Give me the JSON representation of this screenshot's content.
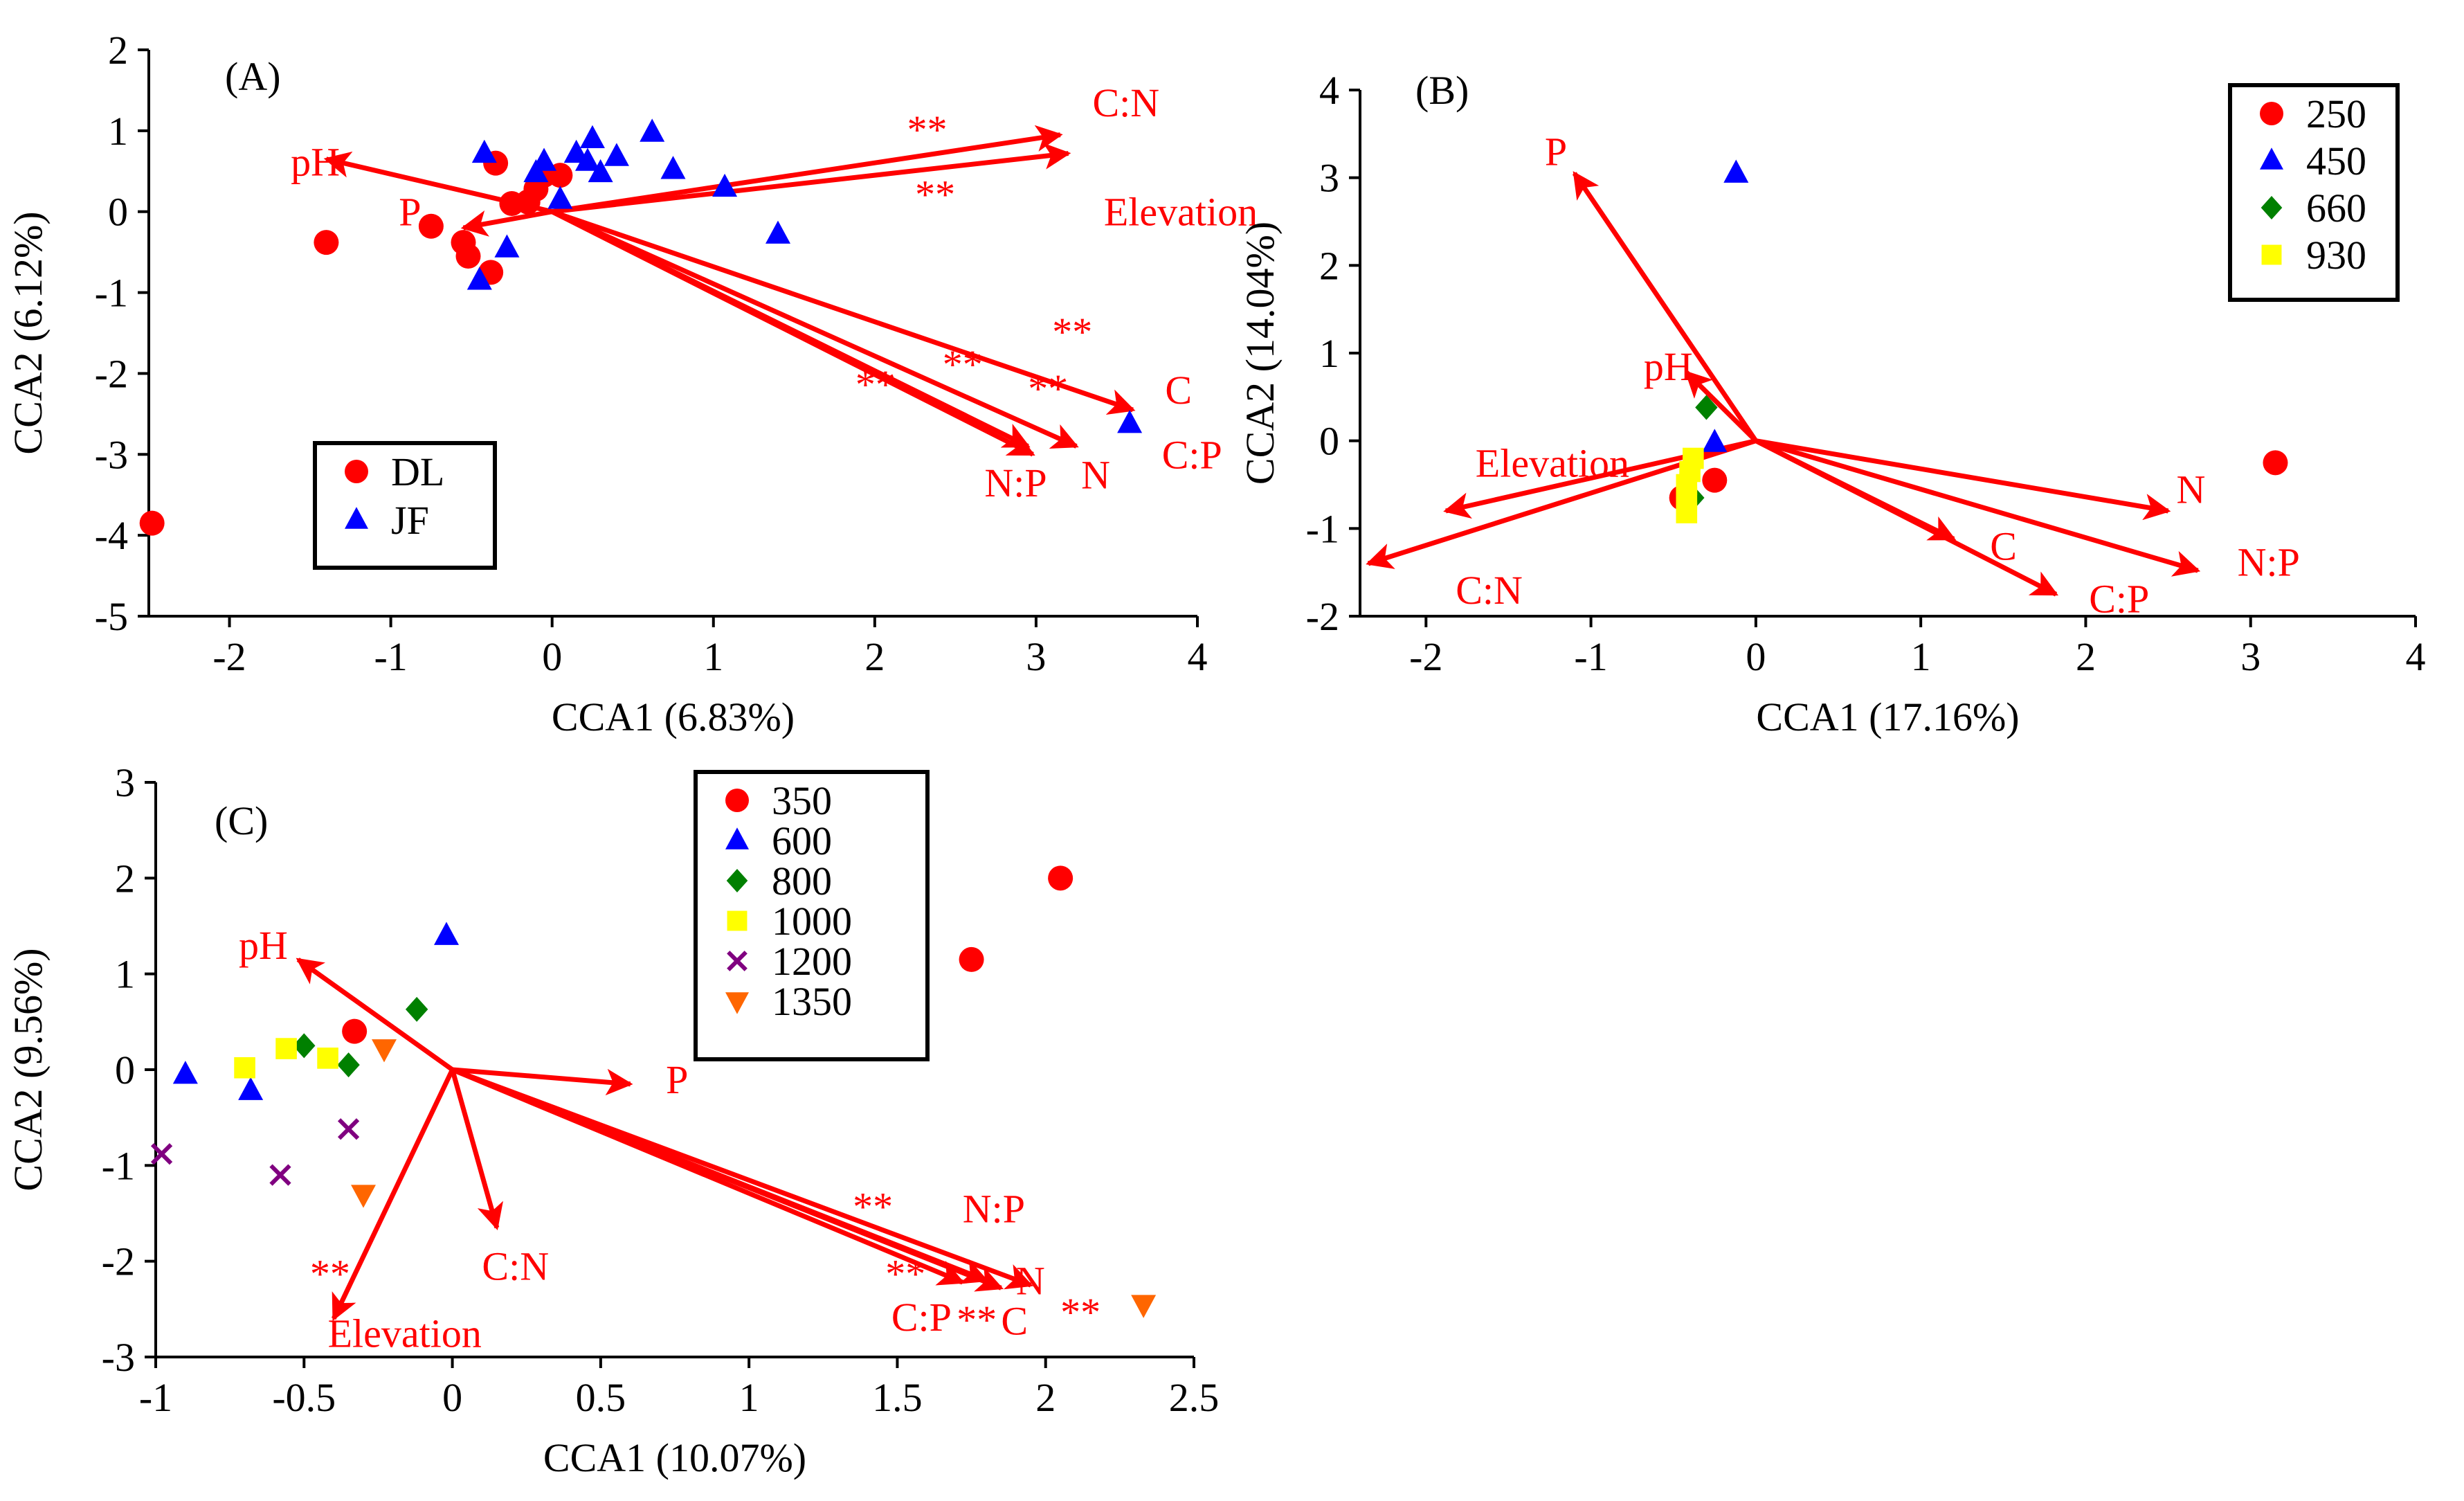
{
  "colors": {
    "arrow": "#ff0000",
    "axis": "#000000",
    "red": "#ff0000",
    "blue": "#0000ff",
    "green": "#008000",
    "yellow": "#ffff00",
    "purple": "#800080",
    "orange": "#ff6600"
  },
  "chart_data": [
    {
      "id": "A",
      "type": "scatter",
      "panel_label": "(A)",
      "xlabel": "CCA1 (6.83%)",
      "ylabel": "CCA2 (6.12%)",
      "xlim": [
        -2.5,
        4
      ],
      "ylim": [
        -5,
        2
      ],
      "xticks": [
        -2,
        -1,
        0,
        1,
        2,
        3,
        4
      ],
      "yticks": [
        2,
        1,
        0,
        -1,
        -2,
        -3,
        -4,
        -5
      ],
      "legend": {
        "position": "bottom-left",
        "entries": [
          {
            "label": "DL",
            "marker": "circle",
            "color": "#ff0000"
          },
          {
            "label": "JF",
            "marker": "triangle",
            "color": "#0000ff"
          }
        ]
      },
      "series": [
        {
          "name": "DL",
          "marker": "circle",
          "color": "#ff0000",
          "points": [
            [
              -2.48,
              -3.85
            ],
            [
              -1.4,
              -0.38
            ],
            [
              -0.75,
              -0.18
            ],
            [
              -0.55,
              -0.38
            ],
            [
              -0.52,
              -0.55
            ],
            [
              -0.38,
              -0.75
            ],
            [
              -0.35,
              0.6
            ],
            [
              -0.25,
              0.1
            ],
            [
              -0.1,
              0.28
            ],
            [
              -0.05,
              0.45
            ],
            [
              0.05,
              0.45
            ],
            [
              -0.15,
              0.12
            ]
          ]
        },
        {
          "name": "JF",
          "marker": "triangle",
          "color": "#0000ff",
          "points": [
            [
              -0.42,
              0.72
            ],
            [
              -0.45,
              -0.85
            ],
            [
              -0.28,
              -0.45
            ],
            [
              -0.1,
              0.48
            ],
            [
              -0.05,
              0.62
            ],
            [
              0.05,
              0.15
            ],
            [
              0.15,
              0.72
            ],
            [
              0.22,
              0.62
            ],
            [
              0.25,
              0.9
            ],
            [
              0.3,
              0.48
            ],
            [
              0.4,
              0.68
            ],
            [
              0.62,
              0.98
            ],
            [
              0.75,
              0.52
            ],
            [
              1.07,
              0.3
            ],
            [
              1.4,
              -0.28
            ],
            [
              3.58,
              -2.62
            ]
          ]
        }
      ],
      "vectors": [
        {
          "label": "C:N",
          "x": 3.15,
          "y": 0.95,
          "lx": 3.35,
          "ly": 1.35,
          "sig": "**",
          "sx": 2.2,
          "sy": 1.05
        },
        {
          "label": "Elevation",
          "x": 3.2,
          "y": 0.72,
          "lx": 3.42,
          "ly": 0.0,
          "sig": "**",
          "sx": 2.25,
          "sy": 0.25
        },
        {
          "label": "pH",
          "x": -1.4,
          "y": 0.65,
          "lx": -1.62,
          "ly": 0.62,
          "sig": "",
          "sx": 0,
          "sy": 0
        },
        {
          "label": "P",
          "x": -0.55,
          "y": -0.2,
          "lx": -0.95,
          "ly": 0.0,
          "sig": "",
          "sx": 0,
          "sy": 0
        },
        {
          "label": "C",
          "x": 3.6,
          "y": -2.45,
          "lx": 3.8,
          "ly": -2.2,
          "sig": "**",
          "sx": 3.1,
          "sy": -1.45
        },
        {
          "label": "C:P",
          "x": 3.25,
          "y": -2.9,
          "lx": 3.78,
          "ly": -3.0,
          "sig": "**",
          "sx": 2.95,
          "sy": -2.15
        },
        {
          "label": "N",
          "x": 2.95,
          "y": -2.9,
          "lx": 3.28,
          "ly": -3.25,
          "sig": "**",
          "sx": 2.42,
          "sy": -1.85
        },
        {
          "label": "N:P",
          "x": 2.98,
          "y": -3.0,
          "lx": 2.68,
          "ly": -3.35,
          "sig": "**",
          "sx": 1.88,
          "sy": -2.1
        }
      ]
    },
    {
      "id": "B",
      "type": "scatter",
      "panel_label": "(B)",
      "xlabel": "CCA1 (17.16%)",
      "ylabel": "CCA2 (14.04%)",
      "xlim": [
        -2.4,
        4
      ],
      "ylim": [
        -2,
        4
      ],
      "xticks": [
        -2,
        -1,
        0,
        1,
        2,
        3,
        4
      ],
      "yticks": [
        4,
        3,
        2,
        1,
        0,
        -1,
        -2
      ],
      "legend": {
        "position": "top-right",
        "entries": [
          {
            "label": "250",
            "marker": "circle",
            "color": "#ff0000"
          },
          {
            "label": "450",
            "marker": "triangle",
            "color": "#0000ff"
          },
          {
            "label": "660",
            "marker": "diamond",
            "color": "#008000"
          },
          {
            "label": "930",
            "marker": "square",
            "color": "#ffff00"
          }
        ]
      },
      "series": [
        {
          "name": "250",
          "marker": "circle",
          "color": "#ff0000",
          "points": [
            [
              3.15,
              -0.25
            ],
            [
              -0.25,
              -0.45
            ],
            [
              -0.45,
              -0.65
            ]
          ]
        },
        {
          "name": "450",
          "marker": "triangle",
          "color": "#0000ff",
          "points": [
            [
              -0.12,
              3.05
            ],
            [
              -0.25,
              -0.02
            ]
          ]
        },
        {
          "name": "660",
          "marker": "diamond",
          "color": "#008000",
          "points": [
            [
              -0.3,
              0.38
            ],
            [
              -0.38,
              -0.65
            ]
          ]
        },
        {
          "name": "930",
          "marker": "square",
          "color": "#ffff00",
          "points": [
            [
              -0.38,
              -0.2
            ],
            [
              -0.4,
              -0.35
            ],
            [
              -0.42,
              -0.5
            ],
            [
              -0.42,
              -0.65
            ],
            [
              -0.42,
              -0.82
            ]
          ]
        }
      ],
      "vectors": [
        {
          "label": "P",
          "x": -1.1,
          "y": 3.05,
          "lx": -1.28,
          "ly": 3.3,
          "sig": "",
          "sx": 0,
          "sy": 0
        },
        {
          "label": "pH",
          "x": -0.42,
          "y": 0.78,
          "lx": -0.68,
          "ly": 0.85,
          "sig": "",
          "sx": 0,
          "sy": 0
        },
        {
          "label": "Elevation",
          "x": -1.88,
          "y": -0.8,
          "lx": -1.7,
          "ly": -0.25,
          "sig": "",
          "sx": 0,
          "sy": 0
        },
        {
          "label": "C:N",
          "x": -2.35,
          "y": -1.4,
          "lx": -1.82,
          "ly": -1.7,
          "sig": "",
          "sx": 0,
          "sy": 0
        },
        {
          "label": "N",
          "x": 2.5,
          "y": -0.8,
          "lx": 2.55,
          "ly": -0.55,
          "sig": "",
          "sx": 0,
          "sy": 0
        },
        {
          "label": "N:P",
          "x": 2.68,
          "y": -1.48,
          "lx": 2.92,
          "ly": -1.38,
          "sig": "",
          "sx": 0,
          "sy": 0
        },
        {
          "label": "C",
          "x": 1.2,
          "y": -1.12,
          "lx": 1.42,
          "ly": -1.2,
          "sig": "",
          "sx": 0,
          "sy": 0
        },
        {
          "label": "C:P",
          "x": 1.82,
          "y": -1.75,
          "lx": 2.02,
          "ly": -1.8,
          "sig": "",
          "sx": 0,
          "sy": 0
        }
      ]
    },
    {
      "id": "C",
      "type": "scatter",
      "panel_label": "(C)",
      "xlabel": "CCA1 (10.07%)",
      "ylabel": "CCA2 (9.56%)",
      "xlim": [
        -1,
        2.5
      ],
      "ylim": [
        -3,
        3
      ],
      "xticks": [
        -1,
        -0.5,
        0,
        0.5,
        1,
        1.5,
        2,
        2.5
      ],
      "yticks": [
        3,
        2,
        1,
        0,
        -1,
        -2,
        -3
      ],
      "legend": {
        "position": "top-center",
        "entries": [
          {
            "label": "350",
            "marker": "circle",
            "color": "#ff0000"
          },
          {
            "label": "600",
            "marker": "triangle",
            "color": "#0000ff"
          },
          {
            "label": "800",
            "marker": "diamond",
            "color": "#008000"
          },
          {
            "label": "1000",
            "marker": "square",
            "color": "#ffff00"
          },
          {
            "label": "1200",
            "marker": "cross",
            "color": "#800080"
          },
          {
            "label": "1350",
            "marker": "triangle-down",
            "color": "#ff6600"
          }
        ]
      },
      "series": [
        {
          "name": "350",
          "marker": "circle",
          "color": "#ff0000",
          "points": [
            [
              2.05,
              2.0
            ],
            [
              1.75,
              1.15
            ],
            [
              -0.33,
              0.4
            ]
          ]
        },
        {
          "name": "600",
          "marker": "triangle",
          "color": "#0000ff",
          "points": [
            [
              -0.02,
              1.4
            ],
            [
              -0.9,
              -0.05
            ],
            [
              -0.68,
              -0.22
            ]
          ]
        },
        {
          "name": "800",
          "marker": "diamond",
          "color": "#008000",
          "points": [
            [
              -0.12,
              0.63
            ],
            [
              -0.5,
              0.25
            ],
            [
              -0.35,
              0.05
            ]
          ]
        },
        {
          "name": "1000",
          "marker": "square",
          "color": "#ffff00",
          "points": [
            [
              -0.7,
              0.02
            ],
            [
              -0.56,
              0.22
            ],
            [
              -0.42,
              0.12
            ]
          ]
        },
        {
          "name": "1200",
          "marker": "cross",
          "color": "#800080",
          "points": [
            [
              -0.98,
              -0.88
            ],
            [
              -0.58,
              -1.1
            ],
            [
              -0.35,
              -0.62
            ]
          ]
        },
        {
          "name": "1350",
          "marker": "triangle-down",
          "color": "#ff6600",
          "points": [
            [
              -0.23,
              0.22
            ],
            [
              -0.3,
              -1.3
            ],
            [
              2.33,
              -2.45
            ]
          ]
        }
      ],
      "vectors": [
        {
          "label": "pH",
          "x": -0.52,
          "y": 1.15,
          "lx": -0.72,
          "ly": 1.3,
          "sig": "",
          "sx": 0,
          "sy": 0
        },
        {
          "label": "P",
          "x": 0.6,
          "y": -0.15,
          "lx": 0.72,
          "ly": -0.1,
          "sig": "",
          "sx": 0,
          "sy": 0
        },
        {
          "label": "C:N",
          "x": 0.15,
          "y": -1.65,
          "lx": 0.1,
          "ly": -2.05,
          "sig": "",
          "sx": 0,
          "sy": 0
        },
        {
          "label": "Elevation",
          "x": -0.4,
          "y": -2.6,
          "lx": -0.42,
          "ly": -2.75,
          "sig": "**",
          "sx": -0.48,
          "sy": -2.1
        },
        {
          "label": "N:P",
          "x": 1.8,
          "y": -2.2,
          "lx": 1.72,
          "ly": -1.45,
          "sig": "**",
          "sx": 1.35,
          "sy": -1.4
        },
        {
          "label": "N",
          "x": 1.95,
          "y": -2.25,
          "lx": 1.9,
          "ly": -2.2,
          "sig": "**",
          "sx": 2.05,
          "sy": -2.5
        },
        {
          "label": "C:P",
          "x": 1.72,
          "y": -2.22,
          "lx": 1.48,
          "ly": -2.58,
          "sig": "**",
          "sx": 1.46,
          "sy": -2.1
        },
        {
          "label": "C",
          "x": 1.85,
          "y": -2.28,
          "lx": 1.85,
          "ly": -2.62,
          "sig": "**",
          "sx": 1.7,
          "sy": -2.58
        }
      ]
    }
  ]
}
